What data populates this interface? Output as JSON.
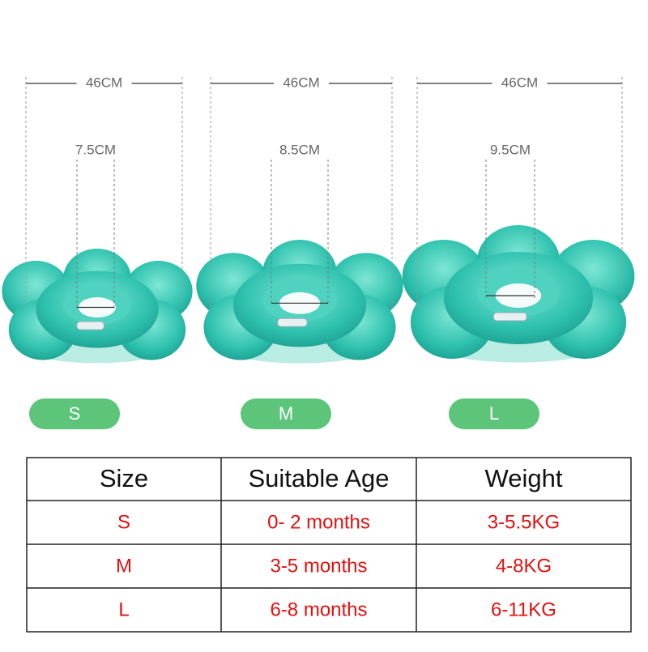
{
  "products": [
    {
      "outer_width": "46CM",
      "inner_diameter": "7.5CM",
      "size": "S"
    },
    {
      "outer_width": "46CM",
      "inner_diameter": "8.5CM",
      "size": "M"
    },
    {
      "outer_width": "46CM",
      "inner_diameter": "9.5CM",
      "size": "L"
    }
  ],
  "table": {
    "header": [
      "Size",
      "Suitable Age",
      "Weight"
    ],
    "rows": [
      [
        "S",
        "0- 2 months",
        "3-5.5KG"
      ],
      [
        "M",
        "3-5 months",
        "4-8KG"
      ],
      [
        "L",
        "6-8 months",
        "6-11KG"
      ]
    ]
  }
}
